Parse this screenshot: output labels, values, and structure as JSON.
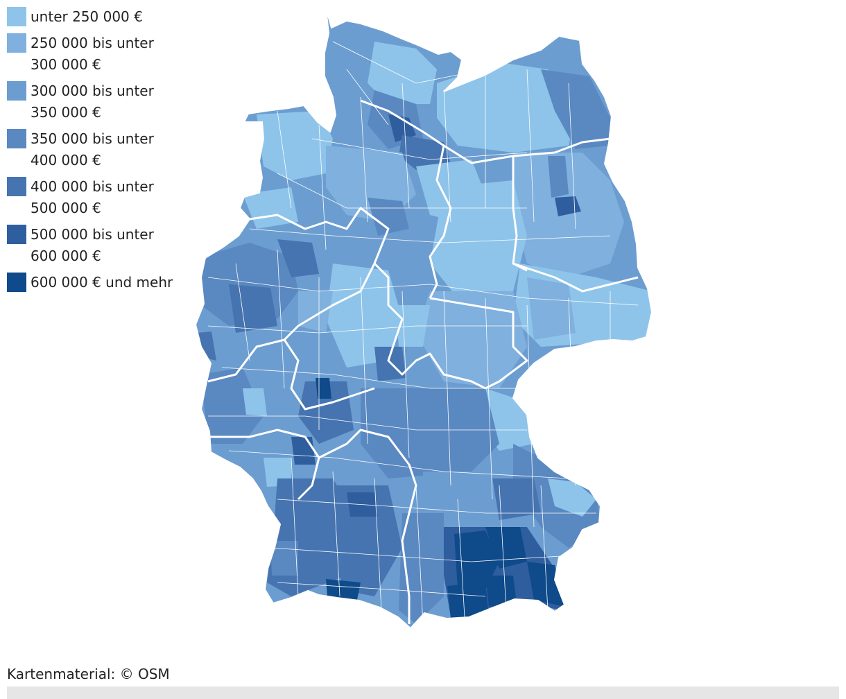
{
  "legend": {
    "items": [
      {
        "label": "unter 250 000 €",
        "color": "#8ec4ea"
      },
      {
        "label": "250 000 bis unter 300 000 €",
        "color": "#7fb0de"
      },
      {
        "label": "300 000 bis unter 350 000 €",
        "color": "#6c9dd0"
      },
      {
        "label": "350 000 bis unter 400 000 €",
        "color": "#5a88c1"
      },
      {
        "label": "400 000 bis unter 500 000 €",
        "color": "#4674b0"
      },
      {
        "label": "500 000 bis unter 600 000 €",
        "color": "#2f5e9e"
      },
      {
        "label": "600 000 € und mehr",
        "color": "#0f4a8a"
      }
    ]
  },
  "credit": "Kartenmaterial: © OSM"
}
